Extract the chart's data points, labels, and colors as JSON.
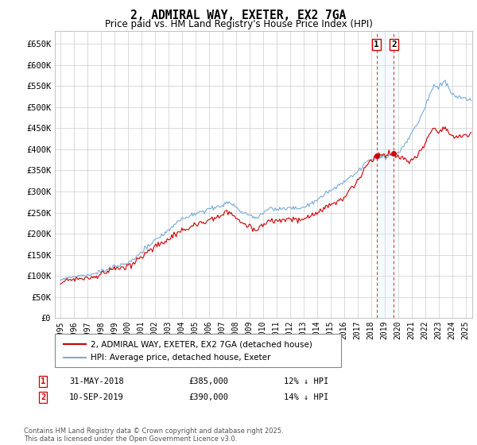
{
  "title": "2, ADMIRAL WAY, EXETER, EX2 7GA",
  "subtitle": "Price paid vs. HM Land Registry's House Price Index (HPI)",
  "ylim": [
    0,
    680000
  ],
  "yticks": [
    0,
    50000,
    100000,
    150000,
    200000,
    250000,
    300000,
    350000,
    400000,
    450000,
    500000,
    550000,
    600000,
    650000
  ],
  "xlim_start": 1994.6,
  "xlim_end": 2025.5,
  "sale1_date": 2018.42,
  "sale1_price": 385000,
  "sale2_date": 2019.69,
  "sale2_price": 390000,
  "line_color_red": "#cc0000",
  "line_color_blue": "#7aacdb",
  "shade_color": "#ddeeff",
  "vline_color": "#cc3333",
  "grid_color": "#cccccc",
  "background_color": "#ffffff",
  "legend_label_red": "2, ADMIRAL WAY, EXETER, EX2 7GA (detached house)",
  "legend_label_blue": "HPI: Average price, detached house, Exeter",
  "annotation1_date": "31-MAY-2018",
  "annotation1_price": "£385,000",
  "annotation1_hpi": "12% ↓ HPI",
  "annotation2_date": "10-SEP-2019",
  "annotation2_price": "£390,000",
  "annotation2_hpi": "14% ↓ HPI",
  "footnote": "Contains HM Land Registry data © Crown copyright and database right 2025.\nThis data is licensed under the Open Government Licence v3.0."
}
